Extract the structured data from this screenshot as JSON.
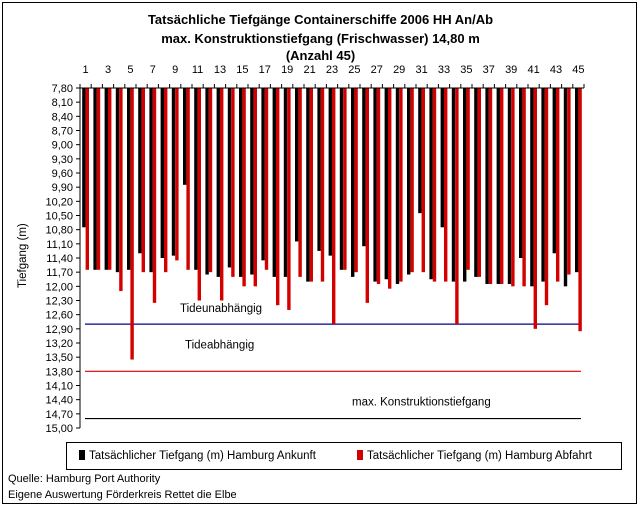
{
  "chart_data": {
    "type": "bar",
    "title_lines": [
      "Tatsächliche Tiefgänge Containerschiffe 2006 HH An/Ab",
      "max. Konstruktionstiefgang (Frischwasser) 14,80 m",
      "(Anzahl 45)"
    ],
    "xlabel": "",
    "ylabel": "Tiefgang (m)",
    "y_inverted": true,
    "ylim": [
      7.8,
      15.0
    ],
    "y_ticks": [
      "7,80",
      "8,10",
      "8,40",
      "8,70",
      "9,00",
      "9,30",
      "9,60",
      "9,90",
      "10,20",
      "10,50",
      "10,80",
      "11,10",
      "11,40",
      "11,70",
      "12,00",
      "12,30",
      "12,60",
      "12,90",
      "13,20",
      "13,50",
      "13,80",
      "14,10",
      "14,40",
      "14,70",
      "15,00"
    ],
    "x_tick_labels": [
      "1",
      "3",
      "5",
      "7",
      "9",
      "11",
      "13",
      "15",
      "17",
      "19",
      "21",
      "23",
      "25",
      "27",
      "29",
      "31",
      "33",
      "35",
      "37",
      "39",
      "41",
      "43",
      "45"
    ],
    "categories": [
      1,
      2,
      3,
      4,
      5,
      6,
      7,
      8,
      9,
      10,
      11,
      12,
      13,
      14,
      15,
      16,
      17,
      18,
      19,
      20,
      21,
      22,
      23,
      24,
      25,
      26,
      27,
      28,
      29,
      30,
      31,
      32,
      33,
      34,
      35,
      36,
      37,
      38,
      39,
      40,
      41,
      42,
      43,
      44,
      45
    ],
    "series": [
      {
        "name": "Tatsächlicher Tiefgang (m) Hamburg Ankunft",
        "color": "#000000",
        "values": [
          10.75,
          11.65,
          11.65,
          11.7,
          11.65,
          11.3,
          11.7,
          11.4,
          11.35,
          9.85,
          11.65,
          11.75,
          11.8,
          11.6,
          11.8,
          11.75,
          11.45,
          11.8,
          11.8,
          11.05,
          11.9,
          11.25,
          11.35,
          11.65,
          11.8,
          11.15,
          11.9,
          11.85,
          11.95,
          11.75,
          10.45,
          11.85,
          10.75,
          11.9,
          11.9,
          11.8,
          11.95,
          11.95,
          11.95,
          11.4,
          12.0,
          11.9,
          11.3,
          12.0,
          11.7
        ]
      },
      {
        "name": "Tatsächlicher Tiefgang (m) Hamburg Abfahrt",
        "color": "#d40000",
        "values": [
          11.65,
          11.65,
          11.65,
          12.1,
          13.55,
          11.7,
          12.35,
          11.7,
          11.45,
          11.65,
          12.3,
          11.7,
          12.3,
          11.8,
          12.0,
          12.0,
          11.65,
          12.4,
          12.5,
          11.8,
          11.9,
          11.9,
          12.8,
          11.65,
          11.7,
          12.35,
          11.95,
          12.05,
          11.9,
          11.7,
          11.7,
          11.9,
          11.9,
          12.8,
          11.65,
          11.8,
          11.95,
          11.95,
          12.0,
          12.0,
          12.9,
          12.4,
          11.9,
          11.75,
          12.95
        ]
      }
    ],
    "reference_lines": [
      {
        "label": "Tideunabhängig",
        "value": 12.8,
        "color": "#00008b"
      },
      {
        "label": "Tideabhängig",
        "value": 13.8,
        "color": "#d40000"
      },
      {
        "label": "max. Konstruktionstiefgang",
        "value": 14.8,
        "color": "#000000"
      }
    ],
    "grid": false,
    "legend_position": "bottom"
  },
  "footer": {
    "source": "Quelle: Hamburg Port Authority",
    "note": "Eigene Auswertung Förderkreis Rettet die Elbe"
  }
}
